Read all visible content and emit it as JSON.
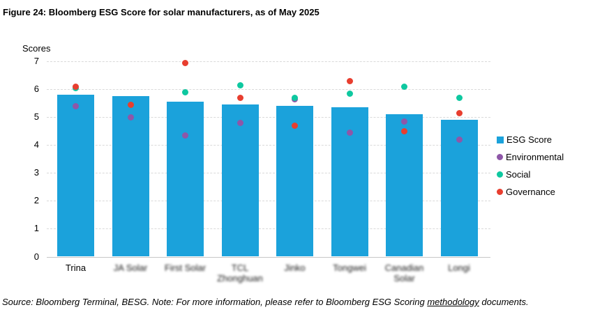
{
  "title": "Figure 24: Bloomberg ESG Score for solar manufacturers, as of May 2025",
  "footer": {
    "prefix": "Source: Bloomberg Terminal, BESG. Note: For more information, please refer to Bloomberg ESG Scoring ",
    "link_text": "methodology",
    "suffix": " documents."
  },
  "colors": {
    "bar": "#1BA2DB",
    "environmental": "#8E57A8",
    "social": "#0EC8A0",
    "governance": "#E83E2F",
    "gridline": "#D9D9D9",
    "axis_line": "#C6C6C6",
    "text": "#000000"
  },
  "legend": {
    "items": [
      {
        "label": "ESG Score",
        "marker": "square",
        "color_key": "bar"
      },
      {
        "label": "Environmental",
        "marker": "circle",
        "color_key": "environmental"
      },
      {
        "label": "Social",
        "marker": "circle",
        "color_key": "social"
      },
      {
        "label": "Governance",
        "marker": "circle",
        "color_key": "governance"
      }
    ]
  },
  "chart_data": {
    "type": "bar",
    "subtype": "bar-with-scatter-overlay",
    "title": "Figure 24: Bloomberg ESG Score for solar manufacturers, as of May 2025",
    "ylabel": "Scores",
    "xlabel": "",
    "ylim": [
      0,
      7
    ],
    "yticks": [
      0,
      1,
      2,
      3,
      4,
      5,
      6,
      7
    ],
    "grid": true,
    "legend_position": "right",
    "categories": [
      "Trina",
      "JA Solar",
      "First Solar",
      "TCL Zhonghuan",
      "Jinko",
      "Tongwei",
      "Canadian Solar",
      "Longi"
    ],
    "category_labels_blurred": [
      false,
      true,
      true,
      true,
      true,
      true,
      true,
      true
    ],
    "series": [
      {
        "name": "ESG Score",
        "render": "bar",
        "color_key": "bar",
        "values": [
          5.8,
          5.75,
          5.55,
          5.45,
          5.4,
          5.35,
          5.1,
          4.9
        ]
      },
      {
        "name": "Environmental",
        "render": "scatter",
        "color_key": "environmental",
        "values": [
          5.4,
          5.0,
          4.35,
          4.8,
          5.65,
          4.45,
          4.85,
          4.2
        ]
      },
      {
        "name": "Social",
        "render": "scatter",
        "color_key": "social",
        "values": [
          6.05,
          5.45,
          5.9,
          6.15,
          5.7,
          5.85,
          6.1,
          5.7
        ]
      },
      {
        "name": "Governance",
        "render": "scatter",
        "color_key": "governance",
        "values": [
          6.1,
          5.45,
          6.95,
          5.7,
          4.7,
          6.3,
          4.5,
          5.15
        ]
      }
    ]
  }
}
